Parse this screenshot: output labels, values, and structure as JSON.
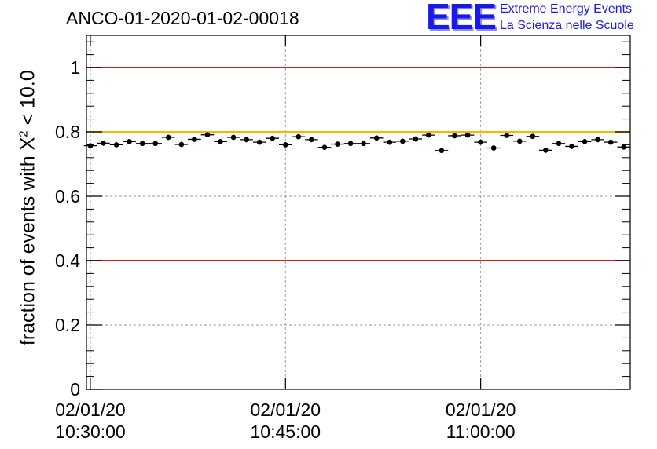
{
  "header": {
    "title": "ANCO-01-2020-01-02-00018",
    "logo_mark": "EEE",
    "logo_line1": "Extreme Energy Events",
    "logo_line2": "La Scienza nelle Scuole"
  },
  "axis": {
    "ylabel_prefix": "fraction of events with ",
    "ylabel_symbol": "X",
    "ylabel_sup": "2",
    "ylabel_suffix": " < 10.0"
  },
  "chart_data": {
    "type": "scatter",
    "title": "ANCO-01-2020-01-02-00018",
    "xlabel": "",
    "ylabel": "fraction of events with X^2 < 10.0",
    "ylim": [
      0,
      1.1
    ],
    "xlim_minutes": [
      -0.3,
      41.5
    ],
    "grid": true,
    "x_tick_minutes": [
      0,
      15,
      30
    ],
    "x_tick_labels": [
      [
        "02/01/20",
        "10:30:00"
      ],
      [
        "02/01/20",
        "10:45:00"
      ],
      [
        "02/01/20",
        "11:00:00"
      ]
    ],
    "y_tick_values": [
      0,
      0.2,
      0.4,
      0.6,
      0.8,
      1
    ],
    "y_tick_labels": [
      "0",
      "0.2",
      "0.4",
      "0.6",
      "0.8",
      "1"
    ],
    "reference_lines": [
      {
        "y": 1.0,
        "color": "#e41a1a"
      },
      {
        "y": 0.8,
        "color": "#f5b800"
      },
      {
        "y": 0.4,
        "color": "#e41a1a"
      }
    ],
    "points_x_minutes": [
      0,
      1,
      2,
      3,
      4,
      5,
      6,
      7,
      8,
      9,
      10,
      11,
      12,
      13,
      14,
      15,
      16,
      17,
      18,
      19,
      20,
      21,
      22,
      23,
      24,
      25,
      26,
      27,
      28,
      29,
      30,
      31,
      32,
      33,
      34,
      35,
      36,
      37,
      38,
      39,
      40,
      41
    ],
    "points_y": [
      0.757,
      0.765,
      0.76,
      0.77,
      0.764,
      0.764,
      0.783,
      0.761,
      0.777,
      0.791,
      0.77,
      0.783,
      0.776,
      0.768,
      0.78,
      0.76,
      0.785,
      0.776,
      0.752,
      0.762,
      0.764,
      0.764,
      0.781,
      0.768,
      0.771,
      0.778,
      0.79,
      0.742,
      0.788,
      0.79,
      0.768,
      0.75,
      0.789,
      0.771,
      0.786,
      0.743,
      0.764,
      0.755,
      0.77,
      0.776,
      0.768,
      0.753
    ],
    "y_error": 0.008,
    "x_halfwidth_minutes": 0.5
  }
}
